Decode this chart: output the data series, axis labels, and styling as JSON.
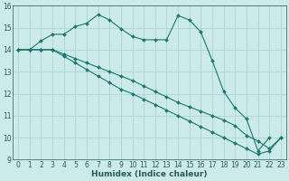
{
  "xlabel": "Humidex (Indice chaleur)",
  "bg_color": "#cceaea",
  "grid_color": "#aad4d4",
  "line_color": "#1a7870",
  "xlim": [
    -0.5,
    23.5
  ],
  "ylim": [
    9,
    16
  ],
  "xticks": [
    0,
    1,
    2,
    3,
    4,
    5,
    6,
    7,
    8,
    9,
    10,
    11,
    12,
    13,
    14,
    15,
    16,
    17,
    18,
    19,
    20,
    21,
    22,
    23
  ],
  "yticks": [
    9,
    10,
    11,
    12,
    13,
    14,
    15,
    16
  ],
  "line1_x": [
    0,
    1,
    2,
    3,
    4,
    5,
    6,
    7,
    8,
    9,
    10,
    11,
    12,
    13,
    14,
    15,
    16,
    17,
    18,
    19,
    20,
    21,
    22
  ],
  "line1_y": [
    14.0,
    14.0,
    14.4,
    14.7,
    14.7,
    15.05,
    15.2,
    15.6,
    15.35,
    14.95,
    14.6,
    14.45,
    14.45,
    14.45,
    15.55,
    15.35,
    14.8,
    13.5,
    12.1,
    11.35,
    10.85,
    9.4,
    10.0
  ],
  "line2_x": [
    0,
    1,
    2,
    3,
    4,
    5,
    6,
    7,
    8,
    9,
    10,
    11,
    12,
    13,
    14,
    15,
    16,
    17,
    18,
    19,
    20,
    21,
    22,
    23
  ],
  "line2_y": [
    14.0,
    14.0,
    14.0,
    14.0,
    13.8,
    13.6,
    13.4,
    13.2,
    13.0,
    12.8,
    12.6,
    12.35,
    12.1,
    11.85,
    11.6,
    11.4,
    11.2,
    11.0,
    10.8,
    10.55,
    10.1,
    9.85,
    9.5,
    10.0
  ],
  "line3_x": [
    0,
    1,
    2,
    3,
    4,
    5,
    6,
    7,
    8,
    9,
    10,
    11,
    12,
    13,
    14,
    15,
    16,
    17,
    18,
    19,
    20,
    21,
    22,
    23
  ],
  "line3_y": [
    14.0,
    14.0,
    14.0,
    14.0,
    13.7,
    13.4,
    13.1,
    12.8,
    12.5,
    12.2,
    12.0,
    11.75,
    11.5,
    11.25,
    11.0,
    10.75,
    10.5,
    10.25,
    10.0,
    9.75,
    9.5,
    9.25,
    9.4,
    10.0
  ],
  "marker": "D",
  "marker_size": 2.0,
  "linewidth": 0.8,
  "tick_fontsize": 5.5,
  "xlabel_fontsize": 6.5
}
